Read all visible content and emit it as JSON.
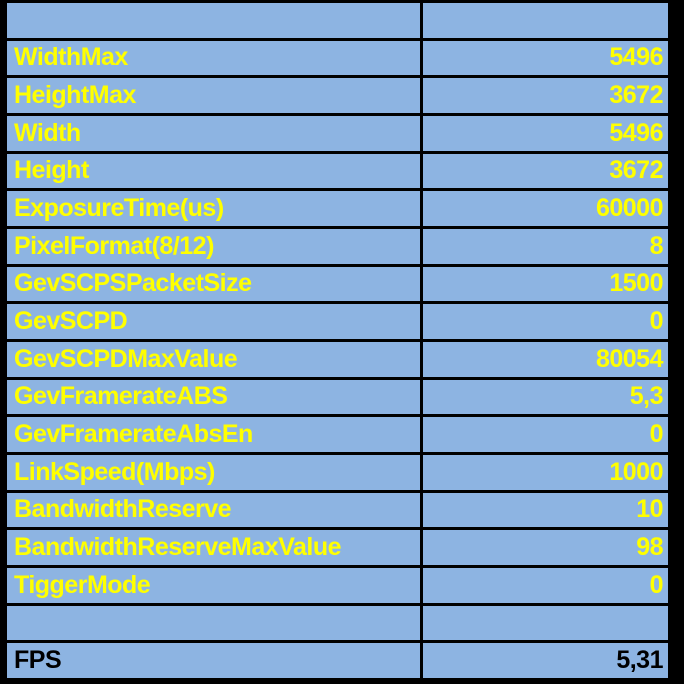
{
  "app": {
    "description": "camera-parameter-table"
  },
  "colors": {
    "cell_background": "#8DB4E2",
    "grid_lines": "#000000",
    "parameter_text": "#FFFF00",
    "fps_text": "#000000",
    "page_background": "#000000"
  },
  "table": {
    "header": {
      "label": "",
      "value": ""
    },
    "rows": [
      {
        "label": "WidthMax",
        "value": "5496"
      },
      {
        "label": "HeightMax",
        "value": "3672"
      },
      {
        "label": "Width",
        "value": "5496"
      },
      {
        "label": "Height",
        "value": "3672"
      },
      {
        "label": "ExposureTime(us)",
        "value": "60000"
      },
      {
        "label": "PixelFormat(8/12)",
        "value": "8"
      },
      {
        "label": "GevSCPSPacketSize",
        "value": "1500"
      },
      {
        "label": "GevSCPD",
        "value": "0"
      },
      {
        "label": "GevSCPDMaxValue",
        "value": "80054"
      },
      {
        "label": "GevFramerateABS",
        "value": "5,3"
      },
      {
        "label": "GevFramerateAbsEn",
        "value": "0"
      },
      {
        "label": "LinkSpeed(Mbps)",
        "value": "1000"
      },
      {
        "label": "BandwidthReserve",
        "value": "10"
      },
      {
        "label": "BandwidthReserveMaxValue",
        "value": "98"
      },
      {
        "label": "TiggerMode",
        "value": "0"
      }
    ],
    "spacer": {
      "label": "",
      "value": ""
    },
    "footer": {
      "label": "FPS",
      "value": "5,31"
    }
  }
}
